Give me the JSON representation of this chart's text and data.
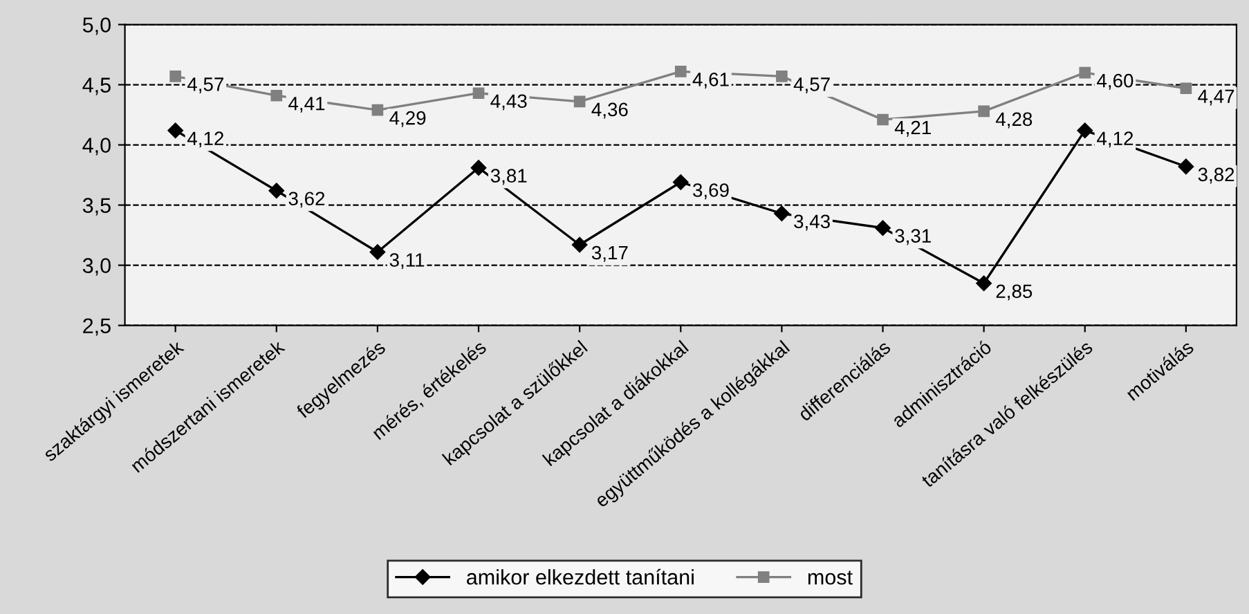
{
  "chart_data": {
    "type": "line",
    "categories": [
      "szaktárgyi ismeretek",
      "módszertani ismeretek",
      "fegyelmezés",
      "mérés, értékelés",
      "kapcsolat a szülőkkel",
      "kapcsolat a diákokkal",
      "együttműködés a kollégákkal",
      "differenciálás",
      "adminisztráció",
      "tanításra való felkészülés",
      "motiválás"
    ],
    "series": [
      {
        "name": "amikor elkezdett tanítani",
        "color": "#000000",
        "marker": "diamond",
        "values": [
          4.12,
          3.62,
          3.11,
          3.81,
          3.17,
          3.69,
          3.43,
          3.31,
          2.85,
          4.12,
          3.82
        ],
        "value_labels": [
          "4,12",
          "3,62",
          "3,11",
          "3,81",
          "3,17",
          "3,69",
          "3,43",
          "3,31",
          "2,85",
          "4,12",
          "3,82"
        ]
      },
      {
        "name": "most",
        "color": "#808080",
        "marker": "square",
        "values": [
          4.57,
          4.41,
          4.29,
          4.43,
          4.36,
          4.61,
          4.57,
          4.21,
          4.28,
          4.6,
          4.47
        ],
        "value_labels": [
          "4,57",
          "4,41",
          "4,29",
          "4,43",
          "4,36",
          "4,61",
          "4,57",
          "4,21",
          "4,28",
          "4,60",
          "4,47"
        ]
      }
    ],
    "ylim": [
      2.5,
      5.0
    ],
    "yticks": [
      {
        "value": 2.5,
        "label": "2,5"
      },
      {
        "value": 3.0,
        "label": "3,0"
      },
      {
        "value": 3.5,
        "label": "3,5"
      },
      {
        "value": 4.0,
        "label": "4,0"
      },
      {
        "value": 4.5,
        "label": "4,5"
      },
      {
        "value": 5.0,
        "label": "5,0"
      }
    ],
    "grid": "y",
    "legend": "bottom",
    "line_style": "solid"
  }
}
